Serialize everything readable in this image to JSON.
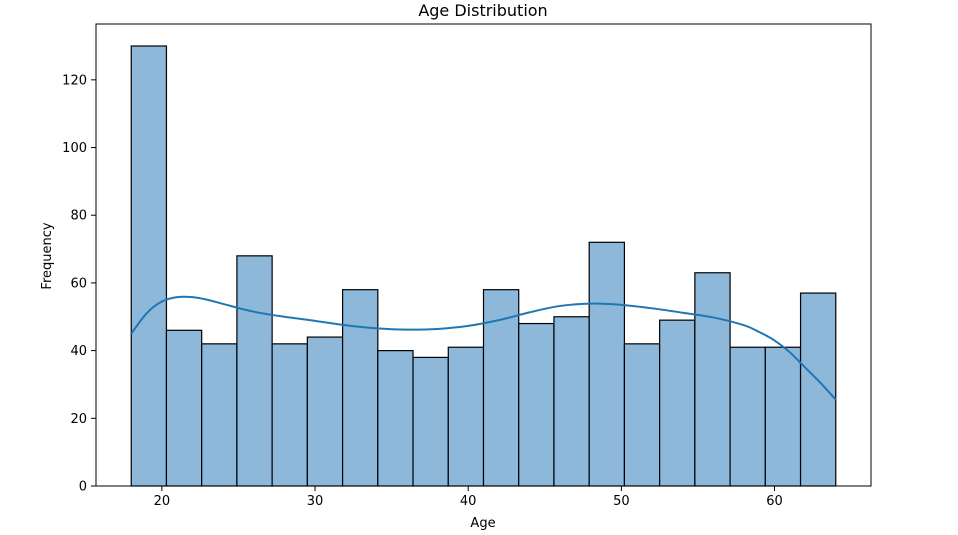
{
  "chart_data": {
    "type": "bar",
    "title": "Age Distribution",
    "xlabel": "Age",
    "ylabel": "Frequency",
    "xlim": [
      15.7,
      66.3
    ],
    "ylim": [
      0,
      136.5
    ],
    "xticks": [
      20,
      30,
      40,
      50,
      60
    ],
    "yticks": [
      0,
      20,
      40,
      60,
      80,
      100,
      120
    ],
    "bin_edges": [
      18,
      20.3,
      22.6,
      24.9,
      27.2,
      29.5,
      31.8,
      34.1,
      36.4,
      38.7,
      41,
      43.3,
      45.6,
      47.9,
      50.2,
      52.5,
      54.8,
      57.1,
      59.4,
      61.7,
      64
    ],
    "values": [
      130,
      46,
      42,
      68,
      42,
      44,
      58,
      40,
      38,
      41,
      58,
      48,
      50,
      72,
      42,
      49,
      63,
      41,
      41,
      57
    ],
    "bar_color": "#8db8da",
    "bar_edge_color": "#000000",
    "kde": {
      "color": "#1f77b4",
      "x": [
        18,
        19,
        20,
        21,
        22,
        23,
        24,
        26,
        28,
        30,
        32,
        34,
        36,
        38,
        40,
        42,
        44,
        46,
        48,
        50,
        52,
        54,
        56,
        58,
        59,
        60,
        61,
        62,
        63,
        64
      ],
      "y": [
        45,
        51,
        54.5,
        55.8,
        55.8,
        55,
        53.8,
        51.5,
        50,
        48.8,
        47.5,
        46.6,
        46.2,
        46.4,
        47.3,
        49,
        51.3,
        53.2,
        53.9,
        53.5,
        52.5,
        51.2,
        49.8,
        47.5,
        45.5,
        43,
        39.5,
        35,
        30.5,
        25.5
      ]
    }
  }
}
